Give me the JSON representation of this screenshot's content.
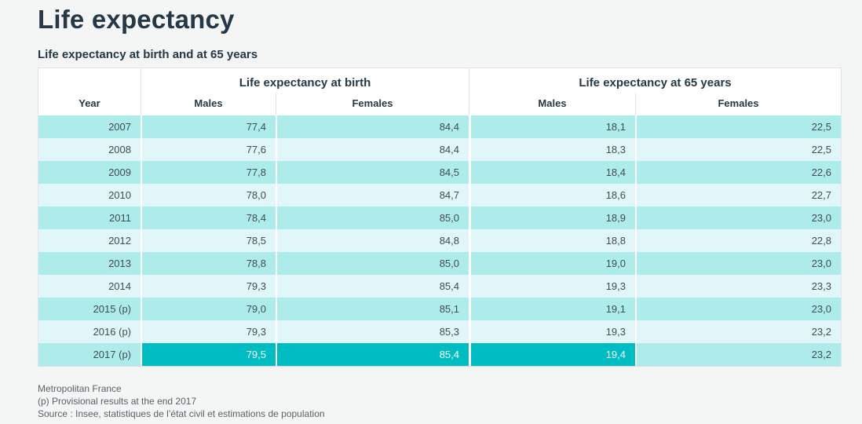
{
  "page_title": "Life expectancy",
  "chart_data": {
    "type": "table",
    "title": "Life expectancy at birth and at 65 years",
    "column_groups": [
      "Life expectancy at birth",
      "Life expectancy at 65 years"
    ],
    "columns": [
      "Year",
      "Males",
      "Females",
      "Males",
      "Females"
    ],
    "rows": [
      {
        "year": "2007",
        "values": [
          "77,4",
          "84,4",
          "18,1",
          "22,5"
        ]
      },
      {
        "year": "2008",
        "values": [
          "77,6",
          "84,4",
          "18,3",
          "22,5"
        ]
      },
      {
        "year": "2009",
        "values": [
          "77,8",
          "84,5",
          "18,4",
          "22,6"
        ]
      },
      {
        "year": "2010",
        "values": [
          "78,0",
          "84,7",
          "18,6",
          "22,7"
        ]
      },
      {
        "year": "2011",
        "values": [
          "78,4",
          "85,0",
          "18,9",
          "23,0"
        ]
      },
      {
        "year": "2012",
        "values": [
          "78,5",
          "84,8",
          "18,8",
          "22,8"
        ]
      },
      {
        "year": "2013",
        "values": [
          "78,8",
          "85,0",
          "19,0",
          "23,0"
        ]
      },
      {
        "year": "2014",
        "values": [
          "79,3",
          "85,4",
          "19,3",
          "23,3"
        ]
      },
      {
        "year": "2015 (p)",
        "values": [
          "79,0",
          "85,1",
          "19,1",
          "23,0"
        ]
      },
      {
        "year": "2016 (p)",
        "values": [
          "79,3",
          "85,3",
          "19,3",
          "23,2"
        ]
      },
      {
        "year": "2017 (p)",
        "values": [
          "79,5",
          "85,4",
          "19,4",
          "23,2"
        ],
        "highlighted_values": [
          true,
          true,
          true,
          false
        ]
      }
    ]
  },
  "notes": [
    "Metropolitan France",
    "(p) Provisional results at the end 2017",
    "Source : Insee, statistiques de l’état civil et estimations de population"
  ],
  "colors": {
    "accent_teal": "#00bdc4",
    "row_teal": "#aeecec",
    "row_light_teal": "#e0f6f8",
    "heading_text": "#263845",
    "body_text": "#414c54",
    "page_background": "#f4f5f5"
  }
}
